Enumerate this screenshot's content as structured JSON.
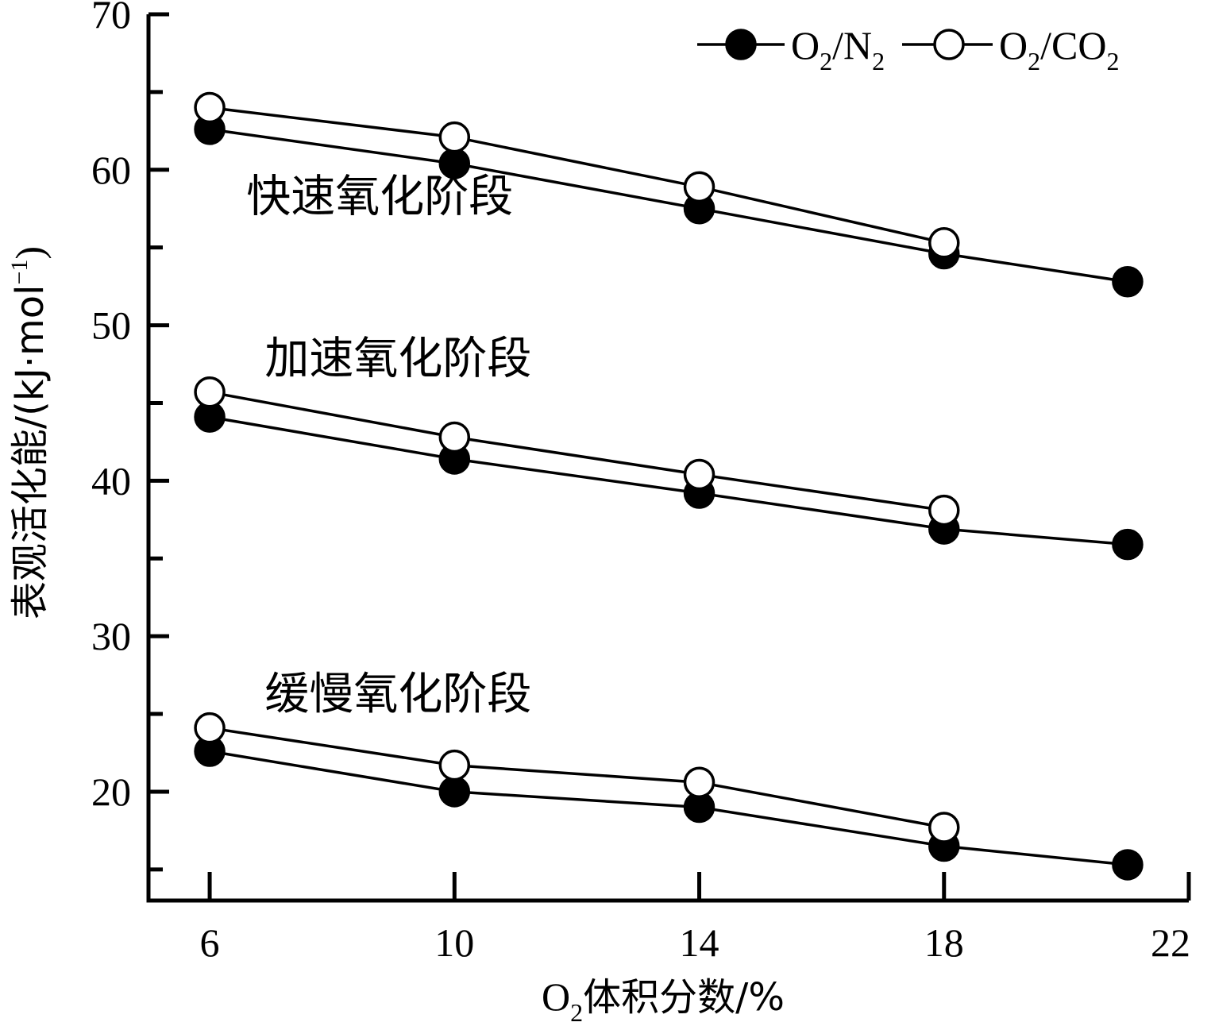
{
  "chart_data": {
    "type": "line",
    "title": "",
    "xlabel": {
      "prefix": "O",
      "sub": "2",
      "rest": "体积分数/%"
    },
    "ylabel": {
      "main": "表观活化能/(kJ·mol",
      "sup": "−1",
      "end": ")"
    },
    "xlim": [
      5,
      22
    ],
    "ylim": [
      13,
      70
    ],
    "x_ticks": [
      6,
      10,
      14,
      18,
      22
    ],
    "y_ticks": [
      20,
      30,
      40,
      50,
      60,
      70
    ],
    "y_minor_ticks": [
      15,
      25,
      35,
      45,
      55,
      65
    ],
    "grid": false,
    "legend": {
      "position": "top-right",
      "entries": [
        {
          "main": "O",
          "sub1": "2",
          "mid": "/N",
          "sub2": "2",
          "marker": "filled"
        },
        {
          "main": "O",
          "sub1": "2",
          "mid": "/CO",
          "sub2": "2",
          "marker": "open"
        }
      ]
    },
    "stage_labels": [
      {
        "text": "快速氧化阶段",
        "x": 6.6,
        "y": 57.3
      },
      {
        "text": "加速氧化阶段",
        "x": 6.9,
        "y": 46.9
      },
      {
        "text": "缓慢氧化阶段",
        "x": 6.9,
        "y": 25.3
      }
    ],
    "series": [
      {
        "group": "快速氧化阶段",
        "legend": 0,
        "x": [
          6,
          10,
          14,
          18,
          21
        ],
        "y": [
          62.6,
          60.4,
          57.5,
          54.6,
          52.8
        ]
      },
      {
        "group": "快速氧化阶段",
        "legend": 1,
        "x": [
          6,
          10,
          14,
          18
        ],
        "y": [
          64.0,
          62.1,
          58.9,
          55.3
        ]
      },
      {
        "group": "加速氧化阶段",
        "legend": 0,
        "x": [
          6,
          10,
          14,
          18,
          21
        ],
        "y": [
          44.1,
          41.4,
          39.2,
          36.9,
          35.9
        ]
      },
      {
        "group": "加速氧化阶段",
        "legend": 1,
        "x": [
          6,
          10,
          14,
          18
        ],
        "y": [
          45.7,
          42.8,
          40.4,
          38.1
        ]
      },
      {
        "group": "缓慢氧化阶段",
        "legend": 0,
        "x": [
          6,
          10,
          14,
          18,
          21
        ],
        "y": [
          22.6,
          20.0,
          19.0,
          16.5,
          15.3
        ]
      },
      {
        "group": "缓慢氧化阶段",
        "legend": 1,
        "x": [
          6,
          10,
          14,
          18
        ],
        "y": [
          24.1,
          21.7,
          20.6,
          17.7
        ]
      }
    ]
  }
}
